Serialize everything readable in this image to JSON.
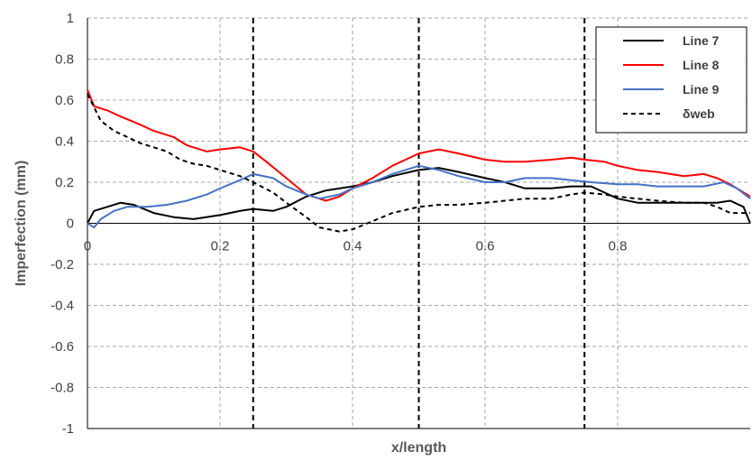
{
  "chart_data": {
    "type": "line",
    "title": "",
    "xlabel": "x/length",
    "ylabel": "Imperfection (mm)",
    "xlim": [
      0,
      1
    ],
    "ylim": [
      -1,
      1
    ],
    "x_ticks": [
      0,
      0.2,
      0.4,
      0.6,
      0.8
    ],
    "x_tick_labels": [
      "0",
      "0.2",
      "0.4",
      "0.6",
      "0.8"
    ],
    "y_ticks": [
      1,
      0.8,
      0.6,
      0.4,
      0.2,
      0,
      -0.2,
      -0.4,
      -0.6,
      -0.8,
      -1
    ],
    "y_tick_labels": [
      "1",
      "0.8",
      "0.6",
      "0.4",
      "0.2",
      "0",
      "-0.2",
      "-0.4",
      "-0.6",
      "-0.8",
      "-1"
    ],
    "grid": true,
    "legend_position": "top-right",
    "reference_lines_x": [
      0.25,
      0.5,
      0.75
    ],
    "series": [
      {
        "name": "Line 7",
        "color": "#000000",
        "dash": "solid",
        "x": [
          0,
          0.01,
          0.03,
          0.05,
          0.07,
          0.1,
          0.13,
          0.16,
          0.2,
          0.23,
          0.25,
          0.28,
          0.3,
          0.33,
          0.36,
          0.4,
          0.43,
          0.46,
          0.5,
          0.53,
          0.56,
          0.6,
          0.63,
          0.66,
          0.7,
          0.73,
          0.76,
          0.78,
          0.8,
          0.83,
          0.86,
          0.9,
          0.93,
          0.95,
          0.97,
          0.99,
          1.0
        ],
        "y": [
          0.0,
          0.06,
          0.08,
          0.1,
          0.09,
          0.05,
          0.03,
          0.02,
          0.04,
          0.06,
          0.07,
          0.06,
          0.08,
          0.13,
          0.16,
          0.18,
          0.2,
          0.23,
          0.26,
          0.27,
          0.25,
          0.22,
          0.2,
          0.17,
          0.17,
          0.18,
          0.18,
          0.15,
          0.12,
          0.1,
          0.1,
          0.1,
          0.1,
          0.1,
          0.11,
          0.08,
          0.0
        ]
      },
      {
        "name": "Line 8",
        "color": "#ff0000",
        "dash": "solid",
        "x": [
          0,
          0.01,
          0.03,
          0.05,
          0.08,
          0.1,
          0.13,
          0.15,
          0.18,
          0.2,
          0.23,
          0.25,
          0.27,
          0.3,
          0.33,
          0.36,
          0.38,
          0.4,
          0.43,
          0.46,
          0.5,
          0.53,
          0.56,
          0.6,
          0.63,
          0.66,
          0.7,
          0.73,
          0.75,
          0.78,
          0.8,
          0.83,
          0.86,
          0.9,
          0.93,
          0.95,
          0.97,
          0.99,
          1.0
        ],
        "y": [
          0.65,
          0.57,
          0.55,
          0.52,
          0.48,
          0.45,
          0.42,
          0.38,
          0.35,
          0.36,
          0.37,
          0.35,
          0.3,
          0.22,
          0.14,
          0.11,
          0.13,
          0.17,
          0.22,
          0.28,
          0.34,
          0.36,
          0.34,
          0.31,
          0.3,
          0.3,
          0.31,
          0.32,
          0.31,
          0.3,
          0.28,
          0.26,
          0.25,
          0.23,
          0.24,
          0.22,
          0.19,
          0.15,
          0.13
        ]
      },
      {
        "name": "Line 9",
        "color": "#4472c4",
        "dash": "solid",
        "x": [
          0,
          0.005,
          0.01,
          0.02,
          0.04,
          0.06,
          0.09,
          0.12,
          0.15,
          0.18,
          0.2,
          0.23,
          0.25,
          0.28,
          0.3,
          0.33,
          0.35,
          0.38,
          0.4,
          0.43,
          0.46,
          0.5,
          0.53,
          0.56,
          0.6,
          0.63,
          0.66,
          0.7,
          0.73,
          0.76,
          0.8,
          0.83,
          0.86,
          0.9,
          0.93,
          0.96,
          0.98,
          1.0
        ],
        "y": [
          0.0,
          -0.01,
          -0.02,
          0.02,
          0.06,
          0.08,
          0.08,
          0.09,
          0.11,
          0.14,
          0.17,
          0.21,
          0.24,
          0.22,
          0.18,
          0.14,
          0.12,
          0.14,
          0.17,
          0.2,
          0.24,
          0.28,
          0.26,
          0.23,
          0.2,
          0.2,
          0.22,
          0.22,
          0.21,
          0.2,
          0.19,
          0.19,
          0.18,
          0.18,
          0.18,
          0.2,
          0.17,
          0.12
        ]
      },
      {
        "name": "δweb",
        "color": "#000000",
        "dash": "dashed",
        "x": [
          0,
          0.02,
          0.04,
          0.06,
          0.08,
          0.1,
          0.12,
          0.14,
          0.16,
          0.18,
          0.2,
          0.23,
          0.25,
          0.28,
          0.3,
          0.33,
          0.35,
          0.38,
          0.4,
          0.43,
          0.46,
          0.5,
          0.53,
          0.56,
          0.6,
          0.63,
          0.66,
          0.7,
          0.73,
          0.75,
          0.78,
          0.8,
          0.83,
          0.86,
          0.9,
          0.93,
          0.95,
          0.97,
          1.0
        ],
        "y": [
          0.63,
          0.5,
          0.45,
          0.42,
          0.39,
          0.37,
          0.35,
          0.31,
          0.29,
          0.28,
          0.26,
          0.23,
          0.2,
          0.15,
          0.1,
          0.03,
          -0.02,
          -0.04,
          -0.03,
          0.01,
          0.05,
          0.08,
          0.09,
          0.09,
          0.1,
          0.11,
          0.12,
          0.12,
          0.14,
          0.15,
          0.14,
          0.13,
          0.12,
          0.11,
          0.1,
          0.1,
          0.08,
          0.05,
          0.05
        ]
      }
    ]
  }
}
